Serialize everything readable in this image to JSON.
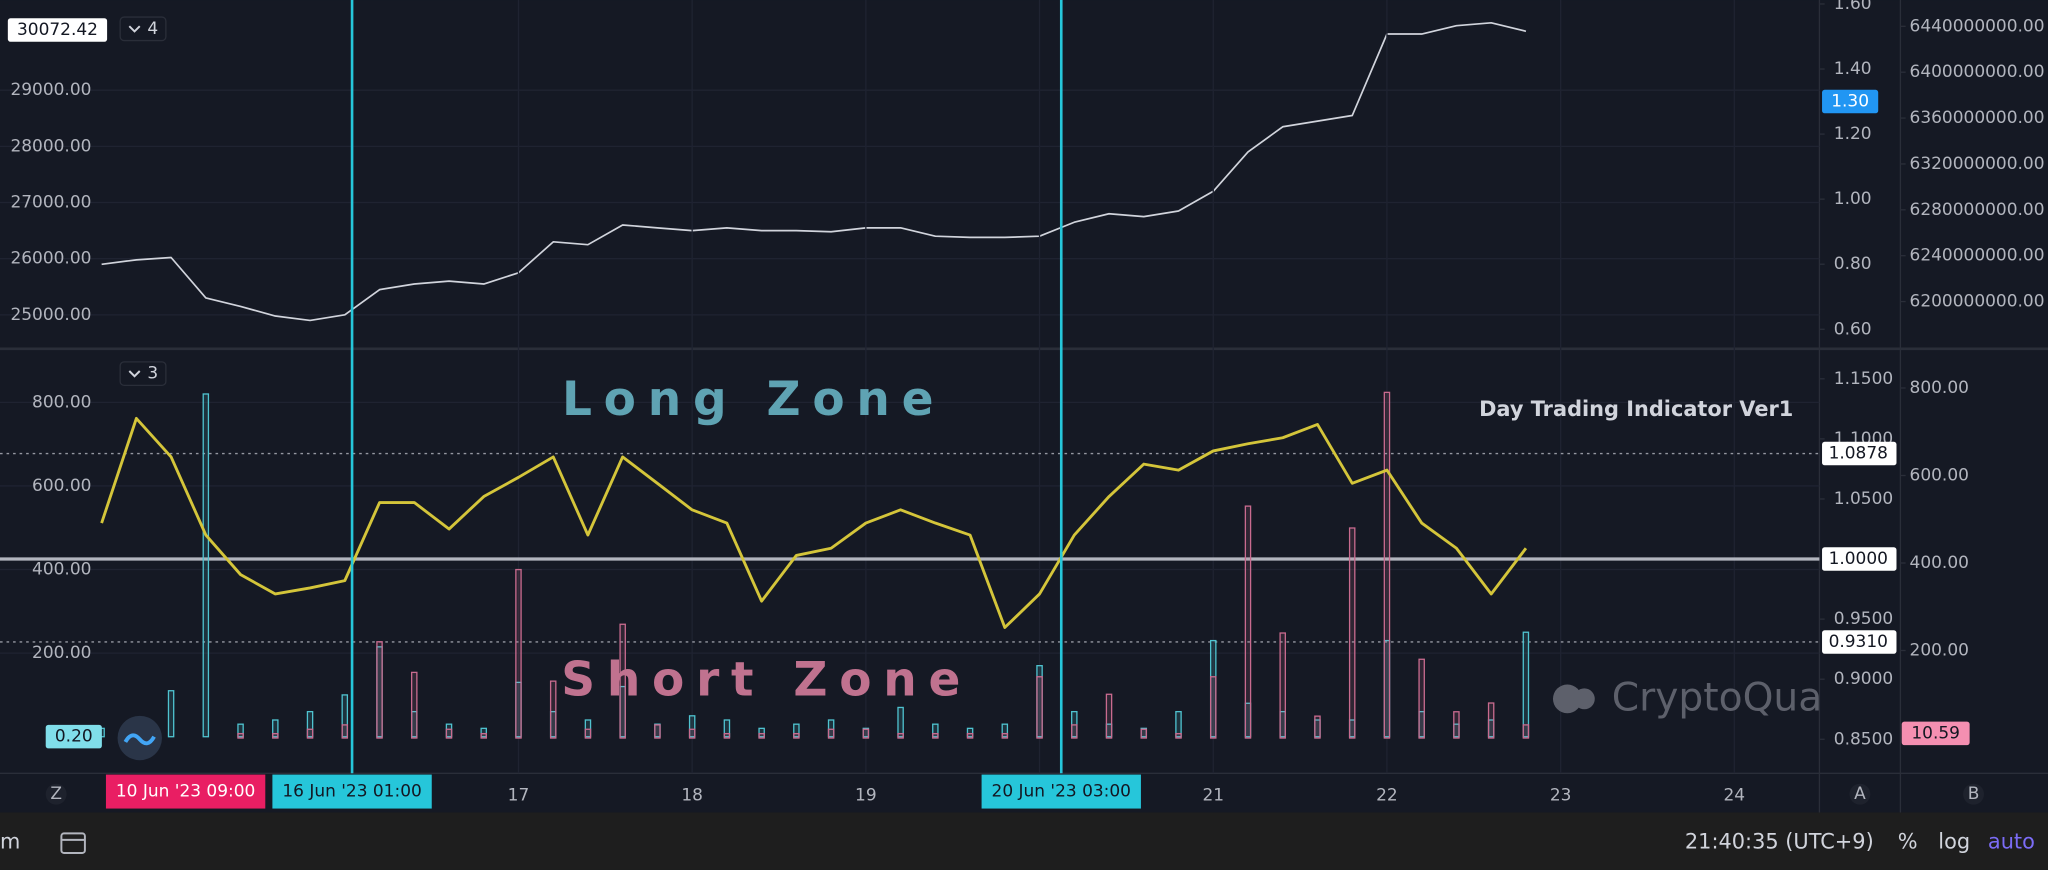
{
  "chart_data": [
    {
      "type": "line",
      "x": [
        14.6,
        14.8,
        15,
        15.2,
        15.4,
        15.6,
        15.8,
        16,
        16.2,
        16.4,
        16.6,
        16.8,
        17,
        17.2,
        17.4,
        17.6,
        17.8,
        18,
        18.2,
        18.4,
        18.6,
        18.8,
        19,
        19.2,
        19.4,
        19.6,
        19.8,
        20,
        20.2,
        20.4,
        20.6,
        20.8,
        21,
        21.2,
        21.4,
        21.6,
        21.8,
        22,
        22.2,
        22.4,
        22.6,
        22.8
      ],
      "values": [
        25900,
        25980,
        26020,
        25300,
        25150,
        24980,
        24900,
        25000,
        25450,
        25550,
        25600,
        25550,
        25750,
        26300,
        26250,
        26600,
        26550,
        26500,
        26550,
        26500,
        26500,
        26480,
        26550,
        26550,
        26400,
        26380,
        26380,
        26400,
        26650,
        26800,
        26750,
        26850,
        27200,
        27900,
        28350,
        28450,
        28550,
        30000,
        30000,
        30150,
        30200,
        30050
      ],
      "color": "#d1d4dc",
      "xlim": [
        14.015,
        24.49
      ],
      "ylim": [
        24442,
        30605
      ],
      "yticks": [
        {
          "value": 25000,
          "label": "25000.00"
        },
        {
          "value": 26000,
          "label": "26000.00"
        },
        {
          "value": 27000,
          "label": "27000.00"
        },
        {
          "value": 28000,
          "label": "28000.00"
        },
        {
          "value": 29000,
          "label": "29000.00"
        }
      ],
      "y2lim": [
        0.548,
        1.612
      ],
      "y2ticks": [
        {
          "value": 0.6,
          "label": "0.60"
        },
        {
          "value": 0.8,
          "label": "0.80"
        },
        {
          "value": 1,
          "label": "1.00"
        },
        {
          "value": 1.2,
          "label": "1.20"
        },
        {
          "value": 1.4,
          "label": "1.40"
        },
        {
          "value": 1.6,
          "label": "1.60"
        }
      ],
      "y3lim": [
        6161100000,
        6462900000
      ],
      "y3ticks": [
        {
          "value": 6200000000,
          "label": "6200000000.00"
        },
        {
          "value": 6240000000,
          "label": "6240000000.00"
        },
        {
          "value": 6280000000,
          "label": "6280000000.00"
        },
        {
          "value": 6320000000,
          "label": "6320000000.00"
        },
        {
          "value": 6360000000,
          "label": "6360000000.00"
        },
        {
          "value": 6400000000,
          "label": "6400000000.00"
        },
        {
          "value": 6440000000,
          "label": "6440000000.00"
        }
      ],
      "grid": true,
      "last_value": 30072.42,
      "y2_marker": {
        "value": 1.3,
        "label": "1.30"
      },
      "pane_label": "4"
    },
    {
      "type": "combo",
      "x": [
        14.6,
        14.8,
        15,
        15.2,
        15.4,
        15.6,
        15.8,
        16,
        16.2,
        16.4,
        16.6,
        16.8,
        17,
        17.2,
        17.4,
        17.6,
        17.8,
        18,
        18.2,
        18.4,
        18.6,
        18.8,
        19,
        19.2,
        19.4,
        19.6,
        19.8,
        20,
        20.2,
        20.4,
        20.6,
        20.8,
        21,
        21.2,
        21.4,
        21.6,
        21.8,
        22,
        22.2,
        22.4,
        22.6,
        22.8
      ],
      "xlim": [
        14.015,
        24.49
      ],
      "xticks": [
        17,
        18,
        19,
        20,
        21,
        22,
        23,
        24
      ],
      "ylim": [
        -87.5,
        925
      ],
      "yticks": [
        {
          "value": 200,
          "label": "200.00"
        },
        {
          "value": 400,
          "label": "400.00"
        },
        {
          "value": 600,
          "label": "600.00"
        },
        {
          "value": 800,
          "label": "800.00"
        }
      ],
      "y2lim": [
        0.8217,
        1.1739
      ],
      "y2ticks": [
        {
          "value": 0.85,
          "label": "0.8500"
        },
        {
          "value": 0.9,
          "label": "0.9000"
        },
        {
          "value": 0.95,
          "label": "0.9500"
        },
        {
          "value": 1.05,
          "label": "1.0500"
        },
        {
          "value": 1.1,
          "label": "1.1000"
        },
        {
          "value": 1.15,
          "label": "1.1500"
        }
      ],
      "y3lim": [
        -80.6,
        886.6
      ],
      "y3ticks": [
        {
          "value": 200,
          "label": "200.00"
        },
        {
          "value": 400,
          "label": "400.00"
        },
        {
          "value": 600,
          "label": "600.00"
        },
        {
          "value": 800,
          "label": "800.00"
        }
      ],
      "grid": true,
      "series": [
        {
          "type": "bar",
          "color": "#4fc3d0",
          "values": [
            20,
            10,
            110,
            820,
            30,
            40,
            60,
            100,
            215,
            60,
            30,
            20,
            130,
            60,
            40,
            120,
            30,
            50,
            40,
            20,
            30,
            40,
            20,
            70,
            30,
            20,
            30,
            170,
            60,
            30,
            20,
            60,
            230,
            80,
            60,
            40,
            40,
            230,
            60,
            30,
            40,
            250
          ]
        },
        {
          "type": "bar",
          "axis": "y3",
          "color": "#c96b8f",
          "values": [
            0,
            0,
            0,
            0,
            10,
            10,
            20,
            30,
            220,
            150,
            20,
            10,
            385,
            130,
            20,
            260,
            30,
            20,
            10,
            10,
            10,
            20,
            20,
            10,
            10,
            10,
            10,
            140,
            30,
            100,
            20,
            10,
            140,
            530,
            240,
            50,
            480,
            790,
            180,
            60,
            80,
            30
          ]
        },
        {
          "type": "line",
          "axis": "y2",
          "color": "#d4c53a",
          "values": [
            1.03,
            1.117,
            1.085,
            1.02,
            0.987,
            0.971,
            0.976,
            0.982,
            1.047,
            1.047,
            1.025,
            1.052,
            1.068,
            1.085,
            1.02,
            1.085,
            1.063,
            1.041,
            1.03,
            0.965,
            1.003,
            1.009,
            1.03,
            1.041,
            1.03,
            1.02,
            0.943,
            0.971,
            1.02,
            1.052,
            1.079,
            1.074,
            1.09,
            1.096,
            1.101,
            1.112,
            1.063,
            1.074,
            1.03,
            1.009,
            0.971,
            1.009
          ]
        }
      ],
      "hlines": [
        {
          "value": 1.0878,
          "label": "1.0878",
          "style": "dotted"
        },
        {
          "value": 1,
          "label": "1.0000",
          "style": "solid"
        },
        {
          "value": 0.931,
          "label": "0.9310",
          "style": "dotted"
        }
      ],
      "vlines": [
        {
          "value": 16.042,
          "label": "16 Jun '23  01:00"
        },
        {
          "value": 20.125,
          "label": "20 Jun '23  03:00"
        }
      ],
      "cursor": {
        "value": 14.64,
        "label": "10 Jun '23  09:00"
      },
      "last_labels": [
        {
          "value": 0.2,
          "label": "0.20",
          "color": "#80deea"
        },
        {
          "value": 10.59,
          "label": "10.59",
          "axis": "y3",
          "color": "#f48fb1"
        }
      ],
      "annotations": [
        "Long Zone",
        "Short Zone"
      ],
      "indicator_title": "Day Trading Indicator Ver1",
      "watermark": "CryptoQuant",
      "pane_label": "3"
    }
  ],
  "ui": {
    "axis_buttons": [
      "Z",
      "A",
      "B"
    ],
    "status": {
      "left": "m",
      "time": "21:40:35 (UTC+9)",
      "percent": "%",
      "log": "log",
      "auto": "auto"
    }
  }
}
